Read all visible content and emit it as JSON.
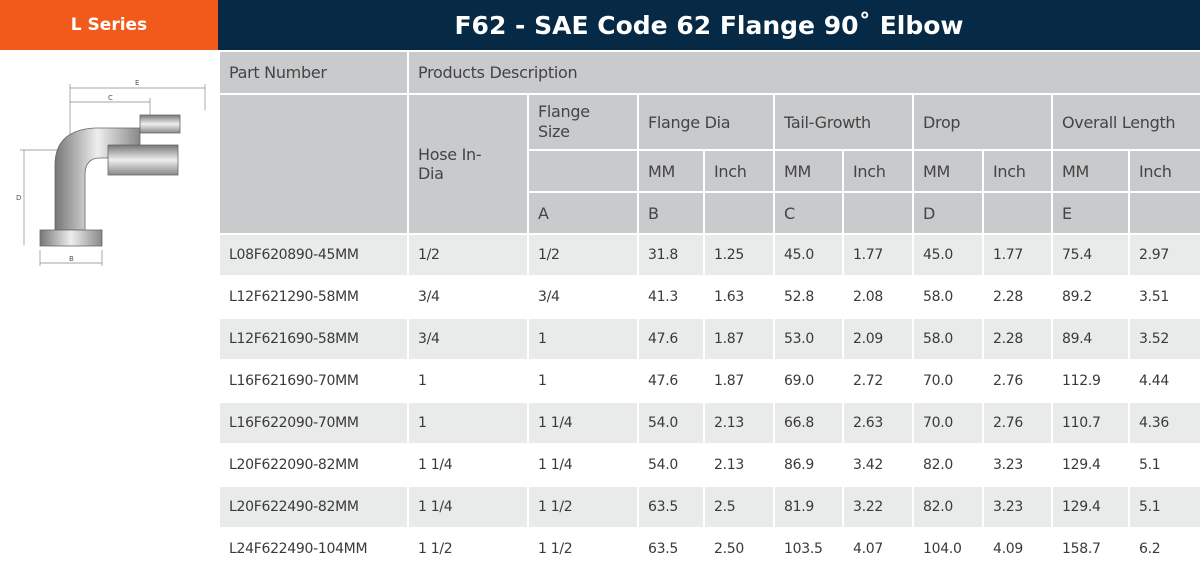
{
  "series_label": "L Series",
  "title": "F62 - SAE Code 62 Flange 90˚ Elbow",
  "headers": {
    "part_number": "Part Number",
    "products_description": "Products Description",
    "hose_in_dia": "Hose In-Dia",
    "flange_size": "Flange Size",
    "flange_dia": "Flange Dia",
    "tail_growth": "Tail-Growth",
    "drop": "Drop",
    "overall_length": "Overall Length",
    "mm": "MM",
    "inch": "Inch",
    "a": "A",
    "b": "B",
    "c": "C",
    "d": "D",
    "e": "E"
  },
  "diagram_labels": {
    "e": "E",
    "c": "C",
    "d": "D",
    "b": "B"
  },
  "rows": [
    [
      "L08F620890-45MM",
      "1/2",
      "1/2",
      "31.8",
      "1.25",
      "45.0",
      "1.77",
      "45.0",
      "1.77",
      "75.4",
      "2.97"
    ],
    [
      "L12F621290-58MM",
      "3/4",
      "3/4",
      "41.3",
      "1.63",
      "52.8",
      "2.08",
      "58.0",
      "2.28",
      "89.2",
      "3.51"
    ],
    [
      "L12F621690-58MM",
      "3/4",
      "1",
      "47.6",
      "1.87",
      "53.0",
      "2.09",
      "58.0",
      "2.28",
      "89.4",
      "3.52"
    ],
    [
      "L16F621690-70MM",
      "1",
      "1",
      "47.6",
      "1.87",
      "69.0",
      "2.72",
      "70.0",
      "2.76",
      "112.9",
      "4.44"
    ],
    [
      "L16F622090-70MM",
      "1",
      "1 1/4",
      "54.0",
      "2.13",
      "66.8",
      "2.63",
      "70.0",
      "2.76",
      "110.7",
      "4.36"
    ],
    [
      "L20F622090-82MM",
      "1 1/4",
      "1 1/4",
      "54.0",
      "2.13",
      "86.9",
      "3.42",
      "82.0",
      "3.23",
      "129.4",
      "5.1"
    ],
    [
      "L20F622490-82MM",
      "1 1/4",
      "1 1/2",
      "63.5",
      "2.5",
      "81.9",
      "3.22",
      "82.0",
      "3.23",
      "129.4",
      "5.1"
    ],
    [
      "L24F622490-104MM",
      "1 1/2",
      "1 1/2",
      "63.5",
      "2.50",
      "103.5",
      "4.07",
      "104.0",
      "4.09",
      "158.7",
      "6.2"
    ]
  ]
}
